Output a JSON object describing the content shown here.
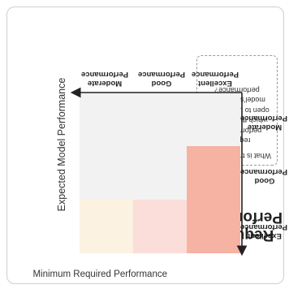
{
  "title": "Expected Model Performance",
  "x_axis_title": "Minimum Required Performance",
  "left_heading": [
    "Required",
    "Performance"
  ],
  "note": {
    "question": "What is the minimum",
    "body": "required performance at which this space is open to use and the model's expected performance?"
  },
  "column_labels": [
    [
      "Excellent",
      "Performance"
    ],
    [
      "Good",
      "Performance"
    ],
    [
      "Moderate",
      "Performance"
    ]
  ],
  "row_labels": [
    [
      "Excellent",
      "Performance"
    ],
    [
      "Good",
      "Performance"
    ],
    [
      "Moderate",
      "Performance"
    ]
  ],
  "colors": {
    "strong": "#f6b3a4",
    "light": "#fbded9",
    "cream": "#fcf2e2",
    "gray": "#f2f2f2",
    "axis": "#222222"
  },
  "grid": [
    [
      "strong",
      "light",
      "cream"
    ],
    [
      "strong",
      "gray",
      "gray"
    ],
    [
      "gray",
      "gray",
      "gray"
    ]
  ]
}
